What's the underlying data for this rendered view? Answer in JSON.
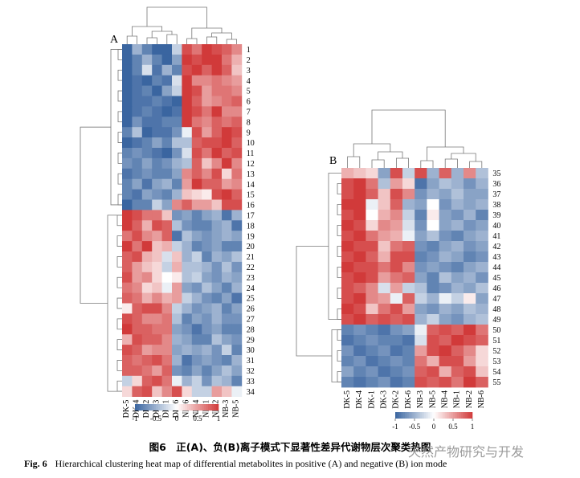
{
  "figure": {
    "caption_cn": "图6　正(A)、负(B)离子模式下显著性差异代谢物层次聚类热图",
    "caption_en_label": "Fig. 6",
    "caption_en_text": "Hierarchical clustering heat map of differential metabolites in positive (A) and negative (B) ion mode",
    "watermark_text": "天然产物研究与开发"
  },
  "colors": {
    "low": "#3a65a0",
    "mid": "#ffffff",
    "high": "#d13a3a"
  },
  "chart_data": [
    {
      "type": "heatmap",
      "panel_label": "A",
      "columns": [
        "DK-5",
        "DK-4",
        "DK-2",
        "DK-3",
        "DK-1",
        "DK-6",
        "NB-6",
        "NB-4",
        "NB-1",
        "NB-2",
        "NB-3",
        "NB-5"
      ],
      "rows": [
        "1",
        "2",
        "3",
        "4",
        "5",
        "6",
        "7",
        "8",
        "9",
        "10",
        "11",
        "12",
        "13",
        "14",
        "15",
        "16",
        "17",
        "18",
        "19",
        "20",
        "21",
        "22",
        "23",
        "24",
        "25",
        "26",
        "27",
        "28",
        "29",
        "30",
        "31",
        "32",
        "33",
        "34"
      ],
      "values": [
        [
          -1,
          -0.5,
          -0.8,
          -1,
          -1,
          -0.3,
          0.9,
          0.7,
          1,
          0.9,
          0.8,
          0.6
        ],
        [
          -1,
          -0.8,
          -0.5,
          -0.8,
          -1,
          -0.6,
          1,
          0.9,
          1,
          1,
          0.7,
          0.4
        ],
        [
          -1,
          -0.8,
          -0.2,
          -0.9,
          -0.5,
          -0.8,
          0.9,
          1,
          0.8,
          1,
          0.8,
          0.3
        ],
        [
          -1,
          -0.9,
          -1,
          -0.8,
          -0.9,
          -0.2,
          1,
          0.6,
          0.6,
          0.7,
          0.6,
          0.5
        ],
        [
          -1,
          -0.9,
          -0.8,
          -1,
          -0.6,
          -0.3,
          1,
          0.9,
          0.5,
          0.7,
          0.7,
          0.6
        ],
        [
          -1,
          -0.9,
          -0.9,
          -0.8,
          -0.9,
          -1,
          1,
          0.8,
          0.5,
          0.6,
          0.7,
          0.8
        ],
        [
          -1,
          -0.9,
          -0.8,
          -0.9,
          -1,
          -0.9,
          1,
          0.9,
          0.7,
          1,
          0.6,
          0.6
        ],
        [
          -1,
          -0.7,
          -0.9,
          -0.9,
          -0.8,
          -0.8,
          1,
          0.7,
          0.6,
          0.8,
          0.7,
          0.8
        ],
        [
          -0.8,
          -0.4,
          -1,
          -0.9,
          -0.9,
          -0.7,
          -0.1,
          0.9,
          0.5,
          0.8,
          1,
          0.9
        ],
        [
          -1,
          -0.9,
          -0.8,
          -0.6,
          -0.8,
          -0.4,
          -0.4,
          0.8,
          0.9,
          0.9,
          1,
          0.8
        ],
        [
          -0.8,
          -0.7,
          -0.8,
          -0.9,
          -1,
          -0.7,
          -0.2,
          0.9,
          0.7,
          1,
          0.8,
          0.9
        ],
        [
          -0.7,
          -0.8,
          -0.6,
          -0.8,
          -0.7,
          -0.5,
          -0.4,
          0.8,
          0.3,
          0.6,
          1,
          0.6
        ],
        [
          -0.9,
          -0.8,
          -0.7,
          -0.8,
          -0.8,
          -0.6,
          0.6,
          0.8,
          0.6,
          0.9,
          0.2,
          0.7
        ],
        [
          -0.8,
          -0.6,
          -0.9,
          -0.6,
          -0.5,
          -0.8,
          0.5,
          1,
          0.8,
          0.8,
          0.5,
          0.6
        ],
        [
          -0.8,
          -0.9,
          -0.6,
          -0.7,
          -0.8,
          -0.5,
          0.3,
          0.2,
          0.1,
          0.9,
          1,
          0.8
        ],
        [
          -1,
          -0.8,
          -0.8,
          -0.3,
          -0.6,
          0.6,
          0.8,
          0.5,
          0.5,
          0.3,
          0.9,
          0.9
        ],
        [
          1,
          0.9,
          0.7,
          0.7,
          0.3,
          -0.7,
          -0.6,
          -0.8,
          -0.6,
          -0.5,
          -0.9,
          -0.5
        ],
        [
          1,
          0.8,
          0.4,
          0.9,
          0.8,
          -0.4,
          -0.7,
          -0.8,
          -0.8,
          -0.6,
          -0.5,
          -0.9
        ],
        [
          0.7,
          0.9,
          0.6,
          0.5,
          0.8,
          -0.9,
          -0.4,
          -0.6,
          -0.7,
          -0.6,
          -0.5,
          -0.6
        ],
        [
          1,
          0.7,
          1,
          0.3,
          0.4,
          -0.3,
          -0.5,
          -0.8,
          -0.7,
          -0.6,
          -0.8,
          -0.8
        ],
        [
          0.8,
          0.9,
          0.4,
          0.3,
          -0.2,
          0.3,
          -0.5,
          -0.3,
          -0.8,
          -0.5,
          -0.6,
          -0.4
        ],
        [
          0.8,
          0.5,
          0.3,
          0.2,
          -0.3,
          0.4,
          -0.4,
          -0.4,
          -0.5,
          -0.7,
          -0.4,
          -0.7
        ],
        [
          0.9,
          0.5,
          0.6,
          0.2,
          0.0,
          0.1,
          -0.4,
          -0.3,
          -0.6,
          -0.7,
          -0.5,
          -0.6
        ],
        [
          0.7,
          0.6,
          0.2,
          0.3,
          -0.1,
          0.5,
          -0.6,
          -0.7,
          -0.4,
          -0.6,
          -0.8,
          -0.5
        ],
        [
          0.8,
          0.7,
          0.4,
          0.6,
          0.4,
          0.5,
          -0.3,
          -0.5,
          -0.7,
          -0.8,
          -0.6,
          -0.9
        ],
        [
          0.1,
          0.8,
          0.9,
          0.9,
          0.6,
          -0.3,
          -0.5,
          -0.7,
          -0.6,
          -0.5,
          -0.8,
          -0.6
        ],
        [
          0.9,
          0.8,
          0.6,
          0.6,
          0.7,
          -0.4,
          -0.8,
          -0.6,
          -0.7,
          -0.5,
          -0.7,
          -0.7
        ],
        [
          1,
          0.8,
          0.8,
          0.7,
          0.7,
          -0.6,
          -0.7,
          -0.9,
          -0.7,
          -0.6,
          -0.8,
          -0.8
        ],
        [
          0.4,
          0.9,
          0.8,
          0.8,
          0.6,
          -0.5,
          -0.6,
          -0.8,
          -0.8,
          -0.4,
          -0.6,
          -0.7
        ],
        [
          0.9,
          0.8,
          0.5,
          0.6,
          0.6,
          -0.6,
          -0.5,
          -0.6,
          -0.5,
          -0.7,
          -0.3,
          -0.8
        ],
        [
          0.8,
          0.7,
          0.8,
          0.9,
          0.7,
          -0.5,
          -0.9,
          -0.7,
          -0.6,
          -0.7,
          -0.8,
          -0.5
        ],
        [
          0.8,
          0.8,
          0.7,
          0.5,
          0.8,
          -0.7,
          -0.8,
          -0.6,
          -0.8,
          -0.6,
          -0.4,
          -0.6
        ],
        [
          -0.3,
          0.2,
          0.8,
          0.9,
          0.7,
          -0.1,
          -0.5,
          -0.3,
          -0.7,
          -0.4,
          -0.5,
          -0.8
        ],
        [
          0.2,
          0.8,
          0.9,
          0.3,
          0.6,
          0.9,
          0.2,
          -0.3,
          -0.3,
          0.5,
          0.3,
          -0.1
        ]
      ],
      "legend_ticks": [
        "-1",
        "-0.5",
        "0",
        "0.5",
        "1"
      ],
      "value_range": [
        -1,
        1
      ]
    },
    {
      "type": "heatmap",
      "panel_label": "B",
      "columns": [
        "DK-5",
        "DK-4",
        "DK-1",
        "DK-3",
        "DK-2",
        "DK-6",
        "NB-3",
        "NB-5",
        "NB-4",
        "NB-1",
        "NB-2",
        "NB-6"
      ],
      "rows": [
        "35",
        "36",
        "37",
        "38",
        "39",
        "40",
        "41",
        "42",
        "43",
        "44",
        "45",
        "46",
        "47",
        "48",
        "49",
        "50",
        "51",
        "52",
        "53",
        "54",
        "55"
      ],
      "values": [
        [
          0.4,
          0.3,
          0.2,
          -0.6,
          0.9,
          -0.3,
          0.9,
          -0.5,
          0.8,
          -0.5,
          0.6,
          -0.4
        ],
        [
          0.9,
          1,
          0.7,
          -0.4,
          0.5,
          0.2,
          -0.9,
          -0.6,
          -0.4,
          -0.5,
          -0.7,
          -0.5
        ],
        [
          0.9,
          1,
          0.8,
          0.3,
          0.9,
          0.6,
          -0.7,
          -0.5,
          -0.6,
          -0.4,
          -0.6,
          -0.6
        ],
        [
          1,
          1,
          -0.1,
          0.3,
          0.8,
          -0.5,
          -0.6,
          0.0,
          -0.7,
          -0.5,
          -0.6,
          -0.5
        ],
        [
          0.9,
          1,
          0.0,
          0.4,
          0.6,
          -0.3,
          -0.8,
          0.1,
          -0.6,
          -0.7,
          -0.5,
          -0.8
        ],
        [
          1,
          0.9,
          0.2,
          0.6,
          0.5,
          -0.2,
          -0.7,
          0.0,
          -0.6,
          -0.5,
          -0.7,
          -0.6
        ],
        [
          0.9,
          1,
          0.7,
          0.5,
          0.4,
          -0.1,
          -0.6,
          -0.4,
          -0.7,
          -0.8,
          -0.6,
          -0.5
        ],
        [
          1,
          0.9,
          0.9,
          0.3,
          0.7,
          0.8,
          -0.7,
          -0.8,
          -0.6,
          -0.5,
          -0.7,
          -0.6
        ],
        [
          0.9,
          1,
          0.8,
          0.4,
          0.9,
          0.9,
          -0.8,
          -0.7,
          -0.5,
          -0.6,
          -0.8,
          -0.7
        ],
        [
          1,
          0.9,
          0.9,
          0.7,
          0.9,
          0.6,
          -0.7,
          -0.6,
          -0.7,
          -0.8,
          -0.6,
          -0.5
        ],
        [
          0.9,
          1,
          0.9,
          0.5,
          0.7,
          0.8,
          -0.6,
          -0.8,
          -0.4,
          -0.6,
          -0.5,
          -0.7
        ],
        [
          0.9,
          0.8,
          0.6,
          -0.2,
          0.5,
          -0.3,
          -0.4,
          -0.8,
          -0.7,
          -0.5,
          -0.6,
          -0.4
        ],
        [
          0.9,
          1,
          0.6,
          0.5,
          -0.1,
          0.8,
          -0.3,
          -0.5,
          -0.1,
          -0.3,
          0.1,
          -0.6
        ],
        [
          1,
          0.9,
          0.3,
          0.7,
          0.9,
          0.5,
          -0.6,
          -0.7,
          -0.5,
          -0.6,
          -0.4,
          -0.5
        ],
        [
          0.9,
          1,
          0.8,
          0.9,
          0.8,
          0.9,
          -0.5,
          -0.3,
          -0.6,
          -0.7,
          -0.5,
          -0.4
        ],
        [
          -0.8,
          -0.7,
          -0.8,
          -0.9,
          -0.7,
          -0.6,
          -0.1,
          0.8,
          0.9,
          0.8,
          1,
          0.7
        ],
        [
          -0.9,
          -0.8,
          -0.7,
          -0.8,
          -0.8,
          -0.9,
          -0.2,
          0.9,
          0.8,
          1,
          0.9,
          0.8
        ],
        [
          -0.7,
          -0.9,
          -0.8,
          -0.7,
          -0.9,
          -0.8,
          0.5,
          0.9,
          1,
          0.8,
          0.6,
          0.2
        ],
        [
          -0.8,
          -0.7,
          -0.9,
          -0.8,
          -0.7,
          -0.8,
          0.7,
          0.4,
          0.9,
          0.9,
          0.5,
          0.2
        ],
        [
          -0.6,
          -0.8,
          -0.7,
          -0.9,
          -0.8,
          -0.7,
          0.8,
          0.9,
          0.4,
          0.8,
          0.9,
          0.3
        ],
        [
          -0.8,
          -0.9,
          -0.8,
          -0.7,
          -0.9,
          -0.8,
          0.9,
          0.8,
          0.9,
          0.7,
          1,
          0.8
        ]
      ],
      "legend_ticks": [
        "-1",
        "-0.5",
        "0",
        "0.5",
        "1"
      ],
      "value_range": [
        -1,
        1
      ]
    }
  ]
}
